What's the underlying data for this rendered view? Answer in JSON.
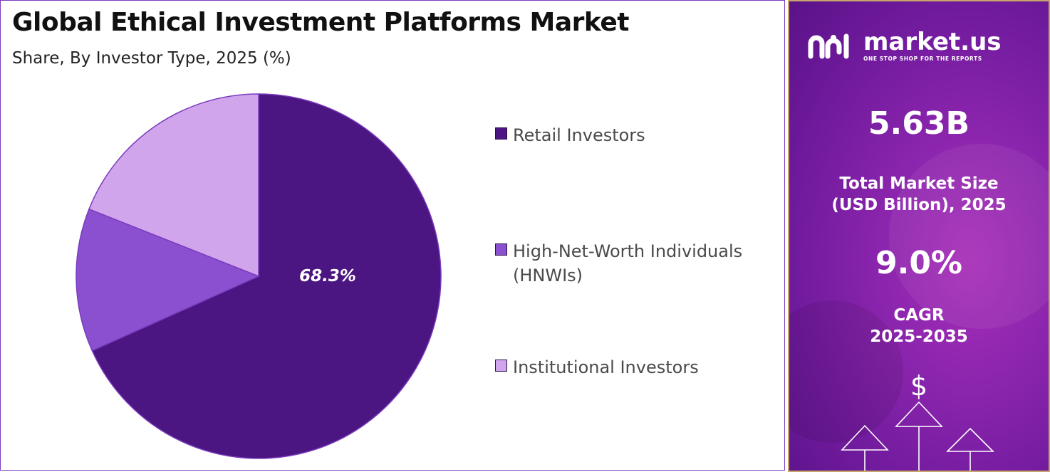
{
  "header": {
    "title": "Global Ethical Investment Platforms Market",
    "subtitle": "Share, By Investor Type, 2025 (%)"
  },
  "chart_data": {
    "type": "pie",
    "title": "Global Ethical Investment Platforms Market",
    "subtitle": "Share, By Investor Type, 2025 (%)",
    "categories": [
      "Retail Investors",
      "High-Net-Worth Individuals (HNWIs)",
      "Institutional Investors"
    ],
    "values": [
      68.3,
      12.7,
      19.0
    ],
    "data_labels": [
      "68.3%",
      "",
      ""
    ],
    "colors": [
      "#4b1582",
      "#8a50cf",
      "#d1a5ec"
    ],
    "legend_position": "right"
  },
  "legend": {
    "items": [
      {
        "label": "Retail Investors",
        "color": "#4b1582"
      },
      {
        "label": "High-Net-Worth Individuals (HNWIs)",
        "color": "#8a50cf"
      },
      {
        "label": "Institutional Investors",
        "color": "#d1a5ec"
      }
    ]
  },
  "sidebar": {
    "brand": "market.us",
    "tagline": "ONE STOP SHOP FOR THE REPORTS",
    "market_size_value": "5.63B",
    "market_size_label_1": "Total Market Size",
    "market_size_label_2": "(USD Billion), 2025",
    "cagr_value": "9.0%",
    "cagr_label_1": "CAGR",
    "cagr_label_2": "2025-2035",
    "currency_symbol": "$"
  }
}
